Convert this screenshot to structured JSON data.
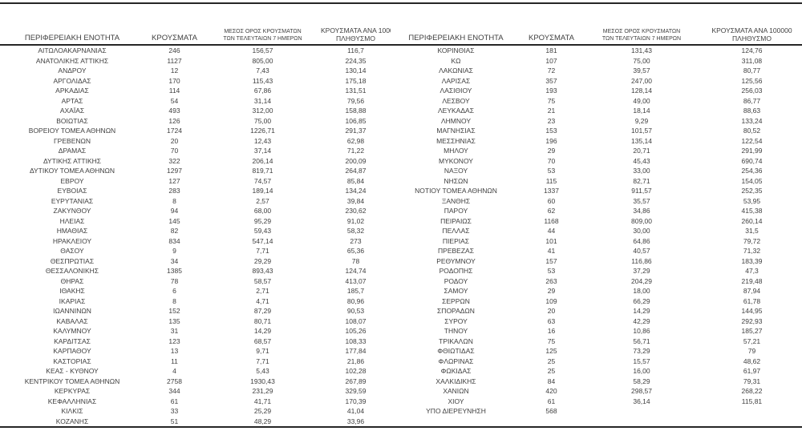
{
  "table": {
    "headers": {
      "region": "ΠΕΡΙΦΕΡΕΙΑΚΗ ΕΝΟΤΗΤΑ",
      "cases": "ΚΡΟΥΣΜΑΤΑ",
      "avg7_line1": "ΜΕΣΟΣ ΟΡΟΣ ΚΡΟΥΣΜΑΤΩΝ",
      "avg7_line2": "ΤΩΝ ΤΕΛΕΥΤΑΙΩΝ 7 ΗΜΕΡΩΝ",
      "per100k_line1": "ΚΡΟΥΣΜΑΤΑ ΑΝΑ 100000",
      "per100k_line2": "ΠΛΗΘΥΣΜΟ"
    },
    "left_rows": [
      [
        "ΑΙΤΩΛΟΑΚΑΡΝΑΝΙΑΣ",
        "246",
        "156,57",
        "116,7"
      ],
      [
        "ΑΝΑΤΟΛΙΚΗΣ ΑΤΤΙΚΗΣ",
        "1127",
        "805,00",
        "224,35"
      ],
      [
        "ΑΝΔΡΟΥ",
        "12",
        "7,43",
        "130,14"
      ],
      [
        "ΑΡΓΟΛΙΔΑΣ",
        "170",
        "115,43",
        "175,18"
      ],
      [
        "ΑΡΚΑΔΙΑΣ",
        "114",
        "67,86",
        "131,51"
      ],
      [
        "ΑΡΤΑΣ",
        "54",
        "31,14",
        "79,56"
      ],
      [
        "ΑΧΑΪΑΣ",
        "493",
        "312,00",
        "158,88"
      ],
      [
        "ΒΟΙΩΤΙΑΣ",
        "126",
        "75,00",
        "106,85"
      ],
      [
        "ΒΟΡΕΙΟΥ ΤΟΜΕΑ ΑΘΗΝΩΝ",
        "1724",
        "1226,71",
        "291,37"
      ],
      [
        "ΓΡΕΒΕΝΩΝ",
        "20",
        "12,43",
        "62,98"
      ],
      [
        "ΔΡΑΜΑΣ",
        "70",
        "37,14",
        "71,22"
      ],
      [
        "ΔΥΤΙΚΗΣ ΑΤΤΙΚΗΣ",
        "322",
        "206,14",
        "200,09"
      ],
      [
        "ΔΥΤΙΚΟΥ ΤΟΜΕΑ ΑΘΗΝΩΝ",
        "1297",
        "819,71",
        "264,87"
      ],
      [
        "ΕΒΡΟΥ",
        "127",
        "74,57",
        "85,84"
      ],
      [
        "ΕΥΒΟΙΑΣ",
        "283",
        "189,14",
        "134,24"
      ],
      [
        "ΕΥΡΥΤΑΝΙΑΣ",
        "8",
        "2,57",
        "39,84"
      ],
      [
        "ΖΑΚΥΝΘΟΥ",
        "94",
        "68,00",
        "230,62"
      ],
      [
        "ΗΛΕΙΑΣ",
        "145",
        "95,29",
        "91,02"
      ],
      [
        "ΗΜΑΘΙΑΣ",
        "82",
        "59,43",
        "58,32"
      ],
      [
        "ΗΡΑΚΛΕΙΟΥ",
        "834",
        "547,14",
        "273"
      ],
      [
        "ΘΑΣΟΥ",
        "9",
        "7,71",
        "65,36"
      ],
      [
        "ΘΕΣΠΡΩΤΙΑΣ",
        "34",
        "29,29",
        "78"
      ],
      [
        "ΘΕΣΣΑΛΟΝΙΚΗΣ",
        "1385",
        "893,43",
        "124,74"
      ],
      [
        "ΘΗΡΑΣ",
        "78",
        "58,57",
        "413,07"
      ],
      [
        "ΙΘΑΚΗΣ",
        "6",
        "2,71",
        "185,7"
      ],
      [
        "ΙΚΑΡΙΑΣ",
        "8",
        "4,71",
        "80,96"
      ],
      [
        "ΙΩΑΝΝΙΝΩΝ",
        "152",
        "87,29",
        "90,53"
      ],
      [
        "ΚΑΒΑΛΑΣ",
        "135",
        "80,71",
        "108,07"
      ],
      [
        "ΚΑΛΥΜΝΟΥ",
        "31",
        "14,29",
        "105,26"
      ],
      [
        "ΚΑΡΔΙΤΣΑΣ",
        "123",
        "68,57",
        "108,33"
      ],
      [
        "ΚΑΡΠΑΘΟΥ",
        "13",
        "9,71",
        "177,84"
      ],
      [
        "ΚΑΣΤΟΡΙΑΣ",
        "11",
        "7,71",
        "21,86"
      ],
      [
        "ΚΕΑΣ - ΚΥΘΝΟΥ",
        "4",
        "5,43",
        "102,28"
      ],
      [
        "ΚΕΝΤΡΙΚΟΥ ΤΟΜΕΑ ΑΘΗΝΩΝ",
        "2758",
        "1930,43",
        "267,89"
      ],
      [
        "ΚΕΡΚΥΡΑΣ",
        "344",
        "231,29",
        "329,59"
      ],
      [
        "ΚΕΦΑΛΛΗΝΙΑΣ",
        "61",
        "41,71",
        "170,39"
      ],
      [
        "ΚΙΛΚΙΣ",
        "33",
        "25,29",
        "41,04"
      ],
      [
        "ΚΟΖΑΝΗΣ",
        "51",
        "48,29",
        "33,96"
      ]
    ],
    "right_rows": [
      [
        "ΚΟΡΙΝΘΙΑΣ",
        "181",
        "131,43",
        "124,76"
      ],
      [
        "ΚΩ",
        "107",
        "75,00",
        "311,08"
      ],
      [
        "ΛΑΚΩΝΙΑΣ",
        "72",
        "39,57",
        "80,77"
      ],
      [
        "ΛΑΡΙΣΑΣ",
        "357",
        "247,00",
        "125,56"
      ],
      [
        "ΛΑΣΙΘΙΟΥ",
        "193",
        "128,14",
        "256,03"
      ],
      [
        "ΛΕΣΒΟΥ",
        "75",
        "49,00",
        "86,77"
      ],
      [
        "ΛΕΥΚΑΔΑΣ",
        "21",
        "18,14",
        "88,63"
      ],
      [
        "ΛΗΜΝΟΥ",
        "23",
        "9,29",
        "133,24"
      ],
      [
        "ΜΑΓΝΗΣΙΑΣ",
        "153",
        "101,57",
        "80,52"
      ],
      [
        "ΜΕΣΣΗΝΙΑΣ",
        "196",
        "135,14",
        "122,54"
      ],
      [
        "ΜΗΛΟΥ",
        "29",
        "20,71",
        "291,99"
      ],
      [
        "ΜΥΚΟΝΟΥ",
        "70",
        "45,43",
        "690,74"
      ],
      [
        "ΝΑΞΟΥ",
        "53",
        "33,00",
        "254,36"
      ],
      [
        "ΝΗΣΩΝ",
        "115",
        "82,71",
        "154,05"
      ],
      [
        "ΝΟΤΙΟΥ ΤΟΜΕΑ ΑΘΗΝΩΝ",
        "1337",
        "911,57",
        "252,35"
      ],
      [
        "ΞΑΝΘΗΣ",
        "60",
        "35,57",
        "53,95"
      ],
      [
        "ΠΑΡΟΥ",
        "62",
        "34,86",
        "415,38"
      ],
      [
        "ΠΕΙΡΑΙΩΣ",
        "1168",
        "809,00",
        "260,14"
      ],
      [
        "ΠΕΛΛΑΣ",
        "44",
        "30,00",
        "31,5"
      ],
      [
        "ΠΙΕΡΙΑΣ",
        "101",
        "64,86",
        "79,72"
      ],
      [
        "ΠΡΕΒΕΖΑΣ",
        "41",
        "40,57",
        "71,32"
      ],
      [
        "ΡΕΘΥΜΝΟΥ",
        "157",
        "116,86",
        "183,39"
      ],
      [
        "ΡΟΔΟΠΗΣ",
        "53",
        "37,29",
        "47,3"
      ],
      [
        "ΡΟΔΟΥ",
        "263",
        "204,29",
        "219,48"
      ],
      [
        "ΣΑΜΟΥ",
        "29",
        "18,00",
        "87,94"
      ],
      [
        "ΣΕΡΡΩΝ",
        "109",
        "66,29",
        "61,78"
      ],
      [
        "ΣΠΟΡΑΔΩΝ",
        "20",
        "14,29",
        "144,95"
      ],
      [
        "ΣΥΡΟΥ",
        "63",
        "42,29",
        "292,93"
      ],
      [
        "ΤΗΝΟΥ",
        "16",
        "10,86",
        "185,27"
      ],
      [
        "ΤΡΙΚΑΛΩΝ",
        "75",
        "56,71",
        "57,21"
      ],
      [
        "ΦΘΙΩΤΙΔΑΣ",
        "125",
        "73,29",
        "79"
      ],
      [
        "ΦΛΩΡΙΝΑΣ",
        "25",
        "15,57",
        "48,62"
      ],
      [
        "ΦΩΚΙΔΑΣ",
        "25",
        "16,00",
        "61,97"
      ],
      [
        "ΧΑΛΚΙΔΙΚΗΣ",
        "84",
        "58,29",
        "79,31"
      ],
      [
        "ΧΑΝΙΩΝ",
        "420",
        "298,57",
        "268,22"
      ],
      [
        "ΧΙΟΥ",
        "61",
        "36,14",
        "115,81"
      ],
      [
        "ΥΠΟ ΔΙΕΡΕΥΝΗΣΗ",
        "568",
        "",
        ""
      ],
      [
        "",
        "",
        "",
        ""
      ]
    ]
  }
}
